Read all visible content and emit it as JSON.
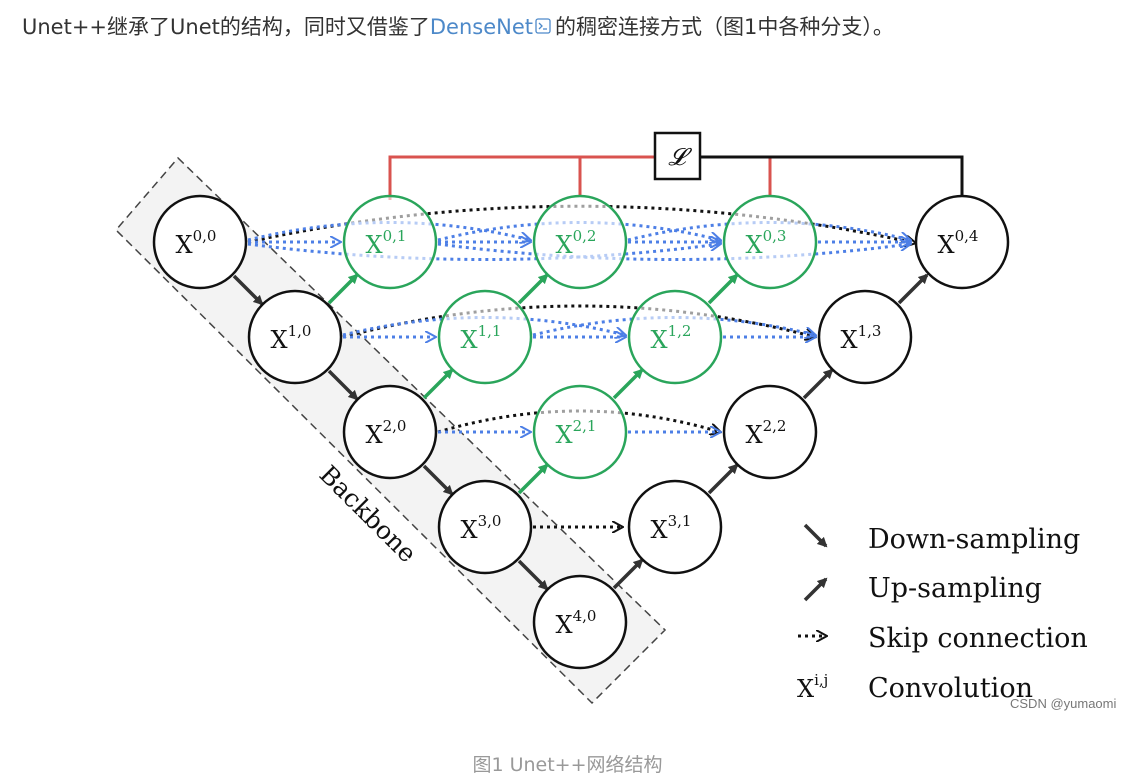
{
  "intro": {
    "text_before": "Unet++继承了Unet的结构，同时又借鉴了",
    "link": "DenseNet",
    "text_after": "的稠密连接方式（图1中各种分支）。"
  },
  "figure": {
    "loss_symbol": "𝓛",
    "backbone_label": "Backbone",
    "nodes": [
      {
        "id": "0,0",
        "text": "X",
        "sup": "0,0",
        "color": "#111111"
      },
      {
        "id": "1,0",
        "text": "X",
        "sup": "1,0",
        "color": "#111111"
      },
      {
        "id": "2,0",
        "text": "X",
        "sup": "2,0",
        "color": "#111111"
      },
      {
        "id": "3,0",
        "text": "X",
        "sup": "3,0",
        "color": "#111111"
      },
      {
        "id": "4,0",
        "text": "X",
        "sup": "4,0",
        "color": "#111111"
      },
      {
        "id": "0,1",
        "text": "X",
        "sup": "0,1",
        "color": "#2aa55b"
      },
      {
        "id": "0,2",
        "text": "X",
        "sup": "0,2",
        "color": "#2aa55b"
      },
      {
        "id": "0,3",
        "text": "X",
        "sup": "0,3",
        "color": "#2aa55b"
      },
      {
        "id": "1,1",
        "text": "X",
        "sup": "1,1",
        "color": "#2aa55b"
      },
      {
        "id": "1,2",
        "text": "X",
        "sup": "1,2",
        "color": "#2aa55b"
      },
      {
        "id": "2,1",
        "text": "X",
        "sup": "2,1",
        "color": "#2aa55b"
      },
      {
        "id": "0,4",
        "text": "X",
        "sup": "0,4",
        "color": "#111111"
      },
      {
        "id": "1,3",
        "text": "X",
        "sup": "1,3",
        "color": "#111111"
      },
      {
        "id": "2,2",
        "text": "X",
        "sup": "2,2",
        "color": "#111111"
      },
      {
        "id": "3,1",
        "text": "X",
        "sup": "3,1",
        "color": "#111111"
      }
    ],
    "legend": {
      "down": "Down-sampling",
      "up": "Up-sampling",
      "skip": "Skip connection",
      "conv_symbol": "X",
      "conv_sup": "i,j",
      "conv": "Convolution"
    },
    "colors": {
      "green": "#2aa55b",
      "blue": "#4d7fe6",
      "red": "#d9534f",
      "black": "#111111",
      "backbone_fill": "#f3f3f3"
    }
  },
  "watermark": "CSDN @yumaomi",
  "caption": "图1 Unet++网络结构"
}
